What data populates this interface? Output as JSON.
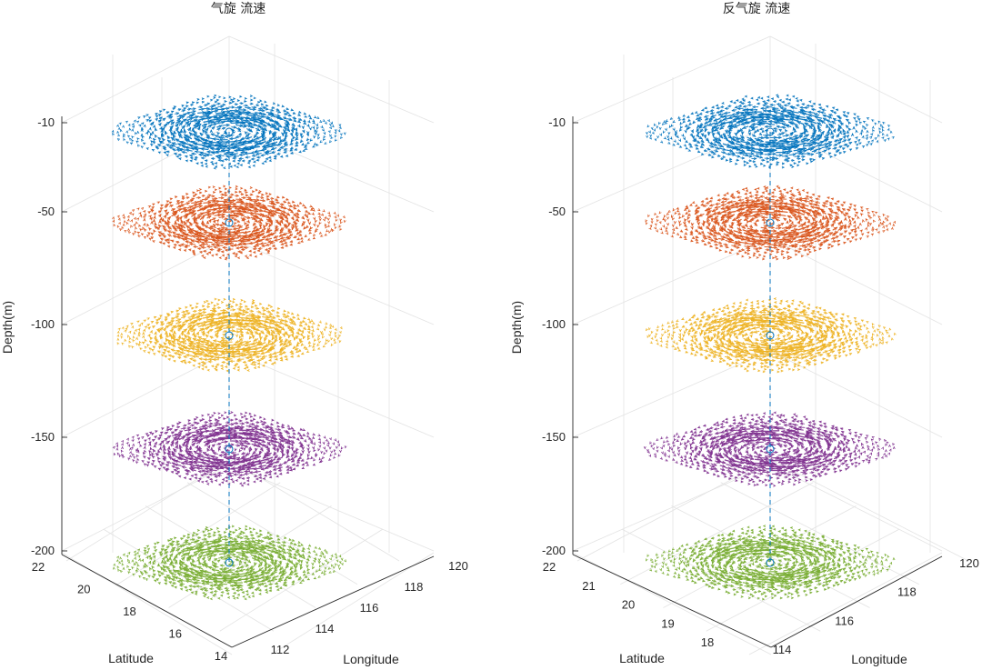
{
  "chart_data": [
    {
      "type": "quiver3d",
      "title": "气旋 流速",
      "xlabel": "Longitude",
      "ylabel": "Latitude",
      "zlabel": "Depth(m)",
      "x_ticks": [
        "112",
        "114",
        "116",
        "118",
        "120"
      ],
      "y_ticks": [
        "14",
        "16",
        "18",
        "20",
        "22"
      ],
      "z_ticks": [
        "-10",
        "-50",
        "-100",
        "-150",
        "-200"
      ],
      "zlim": [
        -200,
        -10
      ],
      "rotation": "counterclockwise",
      "center_line": "dashed",
      "series": [
        {
          "name": "depth -10",
          "depth": -10,
          "color": "#0072BD"
        },
        {
          "name": "depth -50",
          "depth": -50,
          "color": "#D95319"
        },
        {
          "name": "depth -100",
          "depth": -100,
          "color": "#EDB120"
        },
        {
          "name": "depth -150",
          "depth": -150,
          "color": "#7E2F8E"
        },
        {
          "name": "depth -200",
          "depth": -200,
          "color": "#77AC30"
        }
      ]
    },
    {
      "type": "quiver3d",
      "title": "反气旋 流速",
      "xlabel": "Longitude",
      "ylabel": "Latitude",
      "zlabel": "Depth(m)",
      "x_ticks": [
        "114",
        "116",
        "118",
        "120"
      ],
      "y_ticks": [
        "18",
        "19",
        "20",
        "21",
        "22"
      ],
      "z_ticks": [
        "-10",
        "-50",
        "-100",
        "-150",
        "-200"
      ],
      "zlim": [
        -200,
        -10
      ],
      "rotation": "clockwise",
      "center_line": "dashed",
      "series": [
        {
          "name": "depth -10",
          "depth": -10,
          "color": "#0072BD"
        },
        {
          "name": "depth -50",
          "depth": -50,
          "color": "#D95319"
        },
        {
          "name": "depth -100",
          "depth": -100,
          "color": "#EDB120"
        },
        {
          "name": "depth -150",
          "depth": -150,
          "color": "#7E2F8E"
        },
        {
          "name": "depth -200",
          "depth": -200,
          "color": "#77AC30"
        }
      ]
    }
  ]
}
